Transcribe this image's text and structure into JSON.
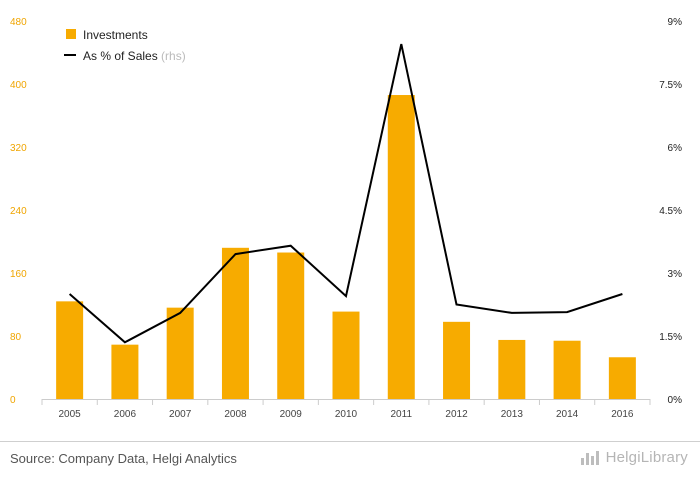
{
  "chart_data": {
    "type": "bar",
    "categories": [
      "2005",
      "2006",
      "2007",
      "2008",
      "2009",
      "2010",
      "2011",
      "2012",
      "2013",
      "2014",
      "2016"
    ],
    "series": [
      {
        "name": "Investments",
        "type": "bar",
        "axis": "left",
        "color": "#f7ab00",
        "values": [
          124,
          69,
          116,
          192,
          186,
          111,
          386,
          98,
          75,
          74,
          53
        ]
      },
      {
        "name": "As % of Sales",
        "name_suffix": "(rhs)",
        "type": "line",
        "axis": "right",
        "color": "#000000",
        "values": [
          2.5,
          1.35,
          2.05,
          3.45,
          3.65,
          2.45,
          8.45,
          2.25,
          2.05,
          2.07,
          2.5
        ]
      }
    ],
    "y_left": {
      "ticks": [
        "0",
        "80",
        "160",
        "240",
        "320",
        "400",
        "480"
      ],
      "min": 0,
      "max": 480
    },
    "y_right": {
      "ticks": [
        "0%",
        "1.5%",
        "3%",
        "4.5%",
        "6%",
        "7.5%",
        "9%"
      ],
      "min": 0,
      "max": 9
    },
    "grid": false,
    "legend": "top-left"
  },
  "footer": {
    "source": "Source: Company Data, Helgi Analytics",
    "brand": "HelgiLibrary",
    "brand_icon": "bar-chart-icon"
  }
}
